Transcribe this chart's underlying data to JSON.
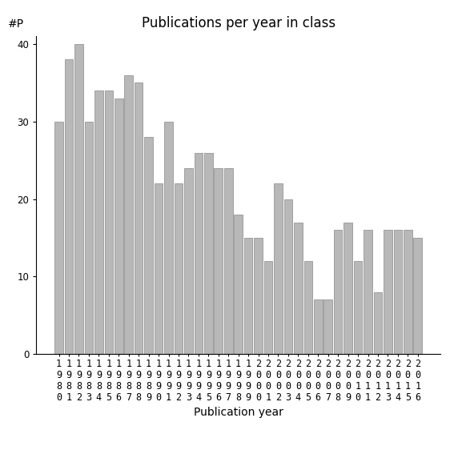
{
  "categories": [
    "1980",
    "1981",
    "1982",
    "1983",
    "1984",
    "1985",
    "1986",
    "1987",
    "1988",
    "1989",
    "1990",
    "1991",
    "1992",
    "1993",
    "1994",
    "1995",
    "1996",
    "1997",
    "1998",
    "1999",
    "2000",
    "2001",
    "2002",
    "2003",
    "2004",
    "2005",
    "2006",
    "2007",
    "2008",
    "2009",
    "2010",
    "2011",
    "2012",
    "2013",
    "2014",
    "2015",
    "2016"
  ],
  "values": [
    30,
    38,
    40,
    30,
    34,
    34,
    33,
    36,
    35,
    28,
    22,
    30,
    22,
    24,
    26,
    26,
    24,
    24,
    18,
    15,
    15,
    12,
    22,
    20,
    17,
    12,
    7,
    7,
    16,
    17,
    12,
    16,
    8,
    16,
    16,
    16,
    15
  ],
  "bar_color": "#b8b8b8",
  "bar_edgecolor": "#888888",
  "title": "Publications per year in class",
  "xlabel": "Publication year",
  "ylabel_label": "#P",
  "ylim": [
    0,
    41
  ],
  "yticks": [
    0,
    10,
    20,
    30,
    40
  ],
  "background_color": "#ffffff",
  "title_fontsize": 12,
  "label_fontsize": 10,
  "tick_fontsize": 8.5
}
